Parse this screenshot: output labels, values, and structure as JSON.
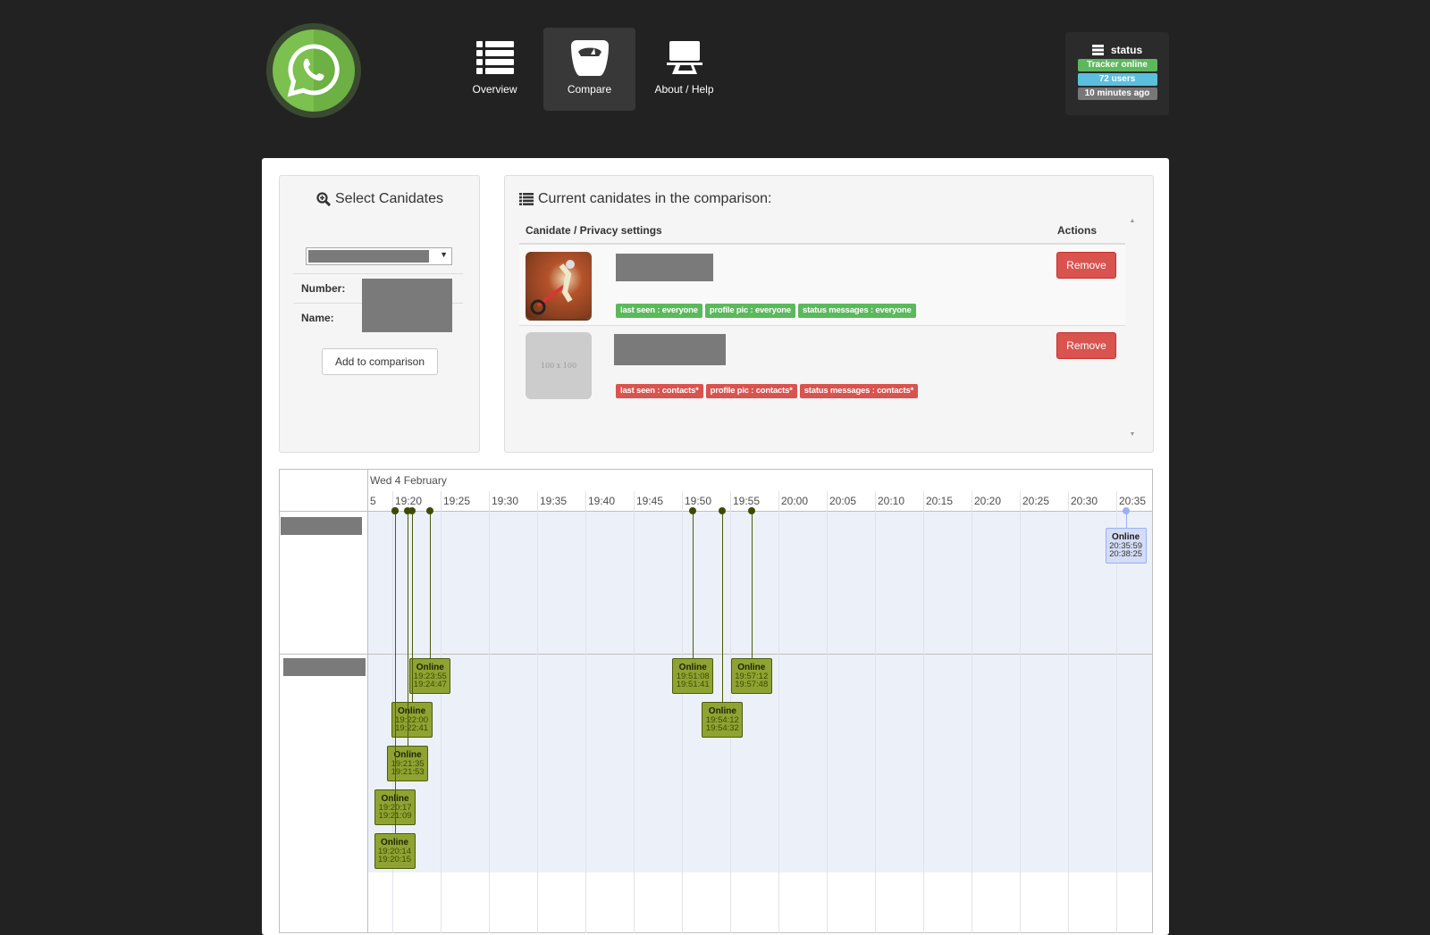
{
  "header": {
    "logo": "whatsapp-logo",
    "nav": [
      {
        "label": "Overview",
        "icon": "list-icon"
      },
      {
        "label": "Compare",
        "icon": "scale-icon",
        "active": true
      },
      {
        "label": "About / Help",
        "icon": "presentation-icon"
      }
    ],
    "status": {
      "title": "status",
      "tracker": "Tracker online",
      "users": "72 users",
      "updated": "10 minutes ago",
      "colors": {
        "tracker": "#5cb85c",
        "users": "#5bc0de",
        "updated": "#777777"
      }
    }
  },
  "select_panel": {
    "title": "Select Canidates",
    "number_label": "Number:",
    "name_label": "Name:",
    "add_button": "Add to comparison"
  },
  "comparison": {
    "title": "Current canidates in the comparison:",
    "col_candidate": "Canidate / Privacy settings",
    "col_actions": "Actions",
    "rows": [
      {
        "avatar": "motocross-photo",
        "tags": [
          "last seen : everyone",
          "profile pic : everyone",
          "status messages : everyone"
        ],
        "tag_color": "#5cb85c",
        "remove": "Remove"
      },
      {
        "avatar_placeholder": "100 x 100",
        "tags": [
          "last seen : contacts*",
          "profile pic : contacts*",
          "status messages : contacts*"
        ],
        "tag_color": "#d9534f",
        "remove": "Remove"
      }
    ]
  },
  "timeline": {
    "date": "Wed 4 February",
    "ticks": [
      "5",
      "19:20",
      "19:25",
      "19:30",
      "19:35",
      "19:40",
      "19:45",
      "19:50",
      "19:55",
      "20:00",
      "20:05",
      "20:10",
      "20:15",
      "20:20",
      "20:25",
      "20:30",
      "20:35"
    ],
    "groups": [
      {
        "items": [
          {
            "label": "Online",
            "start": "20:35:59",
            "end": "20:38:25"
          }
        ]
      },
      {
        "items": [
          {
            "label": "Online",
            "start": "19:20:14",
            "end": "19:20:15"
          },
          {
            "label": "Online",
            "start": "19:20:17",
            "end": "19:21:09"
          },
          {
            "label": "Online",
            "start": "19:21:35",
            "end": "19:21:53"
          },
          {
            "label": "Online",
            "start": "19:22:00",
            "end": "19:22:41"
          },
          {
            "label": "Online",
            "start": "19:23:55",
            "end": "19:24:47"
          },
          {
            "label": "Online",
            "start": "19:51:08",
            "end": "19:51:41"
          },
          {
            "label": "Online",
            "start": "19:54:12",
            "end": "19:54:32"
          },
          {
            "label": "Online",
            "start": "19:57:12",
            "end": "19:57:48"
          }
        ]
      }
    ]
  }
}
